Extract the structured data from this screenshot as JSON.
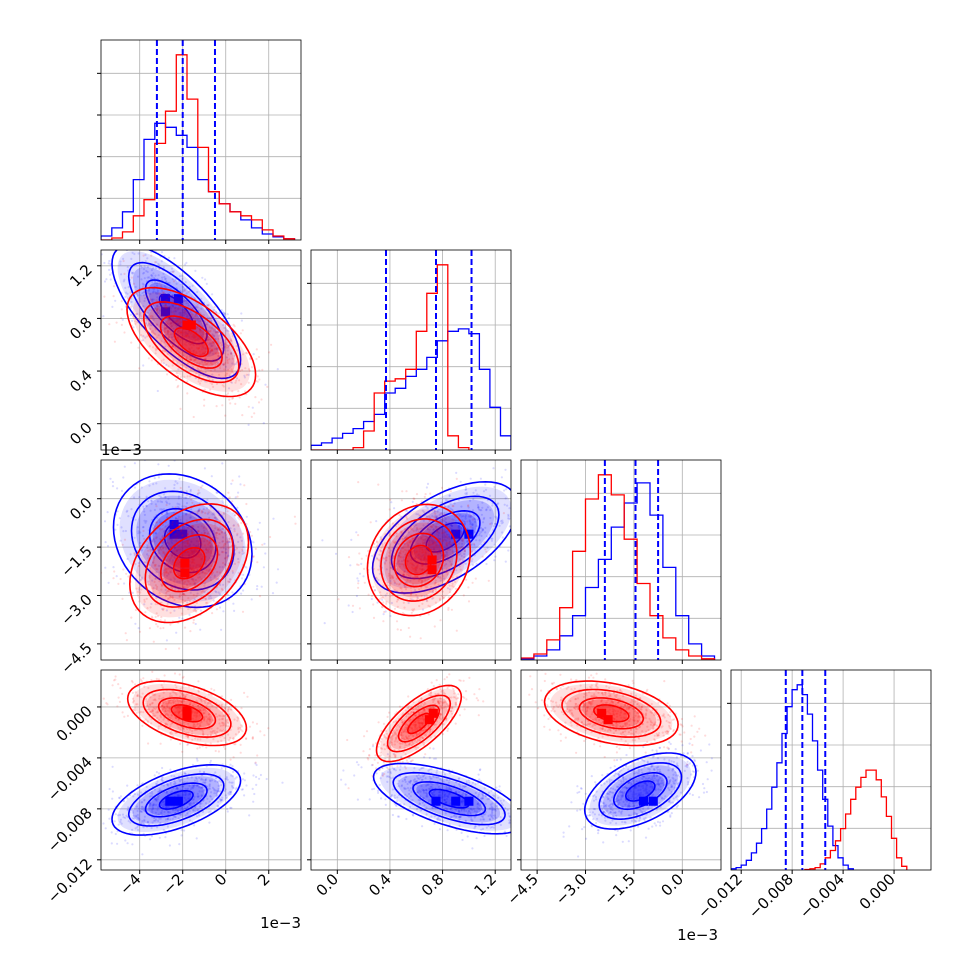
{
  "chart_data": {
    "type": "corner",
    "title": "",
    "grid": true,
    "colors": {
      "blue": "#0000ff",
      "red": "#ff0000",
      "grid": "#b0b0b0"
    },
    "parameters": [
      {
        "offset_label": "1e−3",
        "range": [
          -5.8,
          3.5
        ],
        "ticks": [
          -4,
          -2,
          0,
          2
        ],
        "tick_labels": [
          "−4",
          "−2",
          "0",
          "2"
        ]
      },
      {
        "offset_label": "",
        "range": [
          -0.2,
          1.32
        ],
        "ticks": [
          0.0,
          0.4,
          0.8,
          1.2
        ],
        "tick_labels": [
          "0.0",
          "0.4",
          "0.8",
          "1.2"
        ]
      },
      {
        "offset_label": "1e−3",
        "range": [
          -5.0,
          1.2
        ],
        "ticks": [
          -4.5,
          -3.0,
          -1.5,
          0.0
        ],
        "tick_labels": [
          "−4.5",
          "−3.0",
          "−1.5",
          "0.0"
        ]
      },
      {
        "offset_label": "",
        "range": [
          -0.0128,
          0.0029
        ],
        "ticks": [
          -0.012,
          -0.008,
          -0.004,
          0.0
        ],
        "tick_labels": [
          "−0.012",
          "−0.008",
          "−0.004",
          "0.000"
        ]
      }
    ],
    "quantiles_blue": [
      [
        -3.2,
        -2.0,
        -0.5
      ],
      [
        0.37,
        0.75,
        1.02
      ],
      [
        -2.4,
        -1.45,
        -0.75
      ],
      [
        -0.0085,
        -0.0072,
        -0.0054
      ]
    ],
    "series": [
      {
        "color": "blue",
        "histograms": [
          {
            "bins": [
              -5.8,
              -5.3,
              -4.8,
              -4.3,
              -3.8,
              -3.3,
              -2.8,
              -2.3,
              -1.8,
              -1.3,
              -0.8,
              -0.3,
              0.2,
              0.7,
              1.2,
              1.7,
              2.2,
              2.7,
              3.2
            ],
            "counts": [
              0.1,
              0.3,
              0.7,
              1.5,
              2.5,
              2.9,
              2.8,
              2.6,
              2.3,
              1.5,
              1.2,
              0.9,
              0.7,
              0.5,
              0.3,
              0.15,
              0.08,
              0.03
            ]
          },
          {
            "bins": [
              -0.2,
              -0.12,
              -0.04,
              0.04,
              0.12,
              0.2,
              0.28,
              0.36,
              0.44,
              0.52,
              0.6,
              0.68,
              0.76,
              0.84,
              0.92,
              1.0,
              1.08,
              1.16,
              1.24,
              1.32
            ],
            "counts": [
              0.1,
              0.15,
              0.25,
              0.35,
              0.45,
              0.6,
              0.75,
              1.2,
              1.3,
              1.55,
              1.7,
              1.95,
              2.3,
              2.5,
              2.55,
              2.45,
              1.7,
              0.9,
              0.3
            ]
          },
          {
            "bins": [
              -5.0,
              -4.6,
              -4.2,
              -3.8,
              -3.4,
              -3.0,
              -2.6,
              -2.2,
              -1.8,
              -1.4,
              -1.0,
              -0.6,
              -0.2,
              0.2,
              0.6,
              1.0
            ],
            "counts": [
              0.03,
              0.1,
              0.25,
              0.6,
              1.1,
              1.8,
              2.5,
              3.3,
              3.9,
              4.4,
              3.6,
              2.3,
              1.1,
              0.4,
              0.1
            ]
          },
          {
            "bins": [
              -0.0128,
              -0.0124,
              -0.012,
              -0.0116,
              -0.0112,
              -0.0108,
              -0.0104,
              -0.01,
              -0.0096,
              -0.0092,
              -0.0088,
              -0.0084,
              -0.008,
              -0.0076,
              -0.0072,
              -0.0068,
              -0.0064,
              -0.006,
              -0.0056,
              -0.0052,
              -0.0048,
              -0.0044,
              -0.004,
              -0.0036,
              -0.0032
            ],
            "counts": [
              0.05,
              0.1,
              0.2,
              0.4,
              0.7,
              1.1,
              1.7,
              2.5,
              3.4,
              4.4,
              5.6,
              6.7,
              7.4,
              7.6,
              7.2,
              6.4,
              5.3,
              4.1,
              2.9,
              1.8,
              1.0,
              0.5,
              0.2,
              0.05
            ]
          }
        ],
        "kde2d": [
          {
            "xi": 0,
            "yi": 1,
            "mean": [
              -2.3,
              0.85
            ],
            "sd": [
              1.3,
              0.22
            ],
            "rho": -0.72,
            "bins": [
              [
                -2.8,
                0.95
              ],
              [
                -2.2,
                0.95
              ],
              [
                -2.8,
                0.85
              ]
            ]
          },
          {
            "xi": 0,
            "yi": 2,
            "mean": [
              -2.0,
              -1.3
            ],
            "sd": [
              1.4,
              0.9
            ],
            "rho": -0.2,
            "bins": [
              [
                -2.4,
                -1.1
              ],
              [
                -2.0,
                -1.1
              ],
              [
                -2.4,
                -0.8
              ]
            ]
          },
          {
            "xi": 1,
            "yi": 2,
            "mean": [
              0.82,
              -1.2
            ],
            "sd": [
              0.24,
              0.75
            ],
            "rho": 0.55,
            "bins": [
              [
                0.9,
                -1.1
              ],
              [
                1.0,
                -1.1
              ]
            ]
          },
          {
            "xi": 0,
            "yi": 3,
            "mean": [
              -2.3,
              -0.0073
            ],
            "sd": [
              1.3,
              0.0012
            ],
            "rho": 0.55,
            "bins": [
              [
                -2.6,
                -0.0074
              ],
              [
                -2.2,
                -0.0074
              ]
            ]
          },
          {
            "xi": 1,
            "yi": 3,
            "mean": [
              0.85,
              -0.0072
            ],
            "sd": [
              0.25,
              0.0012
            ],
            "rho": -0.62,
            "bins": [
              [
                0.75,
                -0.0074
              ],
              [
                0.9,
                -0.0074
              ],
              [
                1.0,
                -0.0074
              ]
            ]
          },
          {
            "xi": 2,
            "yi": 3,
            "mean": [
              -1.3,
              -0.0066
            ],
            "sd": [
              0.75,
              0.0013
            ],
            "rho": 0.5,
            "bins": [
              [
                -1.2,
                -0.0074
              ],
              [
                -0.9,
                -0.0074
              ]
            ]
          }
        ]
      },
      {
        "color": "red",
        "histograms": [
          {
            "bins": [
              -5.8,
              -5.3,
              -4.8,
              -4.3,
              -3.8,
              -3.3,
              -2.8,
              -2.3,
              -1.8,
              -1.3,
              -0.8,
              -0.3,
              0.2,
              0.7,
              1.2,
              1.7,
              2.2,
              2.7,
              3.2
            ],
            "counts": [
              0.0,
              0.05,
              0.2,
              0.6,
              1.0,
              2.4,
              3.2,
              4.6,
              3.5,
              2.3,
              1.2,
              0.9,
              0.7,
              0.6,
              0.5,
              0.25,
              0.1,
              0.03
            ]
          },
          {
            "bins": [
              -0.2,
              -0.12,
              -0.04,
              0.04,
              0.12,
              0.2,
              0.28,
              0.36,
              0.44,
              0.52,
              0.6,
              0.68,
              0.76,
              0.84,
              0.92,
              1.0
            ],
            "counts": [
              0.0,
              0.0,
              0.0,
              0.0,
              0.05,
              0.4,
              1.2,
              1.45,
              1.5,
              1.7,
              2.5,
              3.3,
              3.9,
              0.3,
              0.05
            ]
          },
          {
            "bins": [
              -5.0,
              -4.6,
              -4.2,
              -3.8,
              -3.4,
              -3.0,
              -2.6,
              -2.2,
              -1.8,
              -1.4,
              -1.0,
              -0.6,
              -0.2,
              0.2,
              0.6,
              1.0
            ],
            "counts": [
              0.05,
              0.15,
              0.5,
              1.3,
              2.7,
              4.0,
              4.6,
              4.1,
              3.0,
              1.9,
              1.1,
              0.55,
              0.25,
              0.1,
              0.03
            ]
          },
          {
            "bins": [
              -0.007,
              -0.0066,
              -0.0062,
              -0.0058,
              -0.0054,
              -0.005,
              -0.0046,
              -0.0042,
              -0.0038,
              -0.0034,
              -0.003,
              -0.0026,
              -0.0022,
              -0.0018,
              -0.0014,
              -0.001,
              -0.0006,
              -0.0002,
              0.0002,
              0.0006,
              0.001
            ],
            "counts": [
              0.02,
              0.05,
              0.1,
              0.25,
              0.5,
              0.8,
              1.2,
              1.7,
              2.3,
              2.9,
              3.4,
              3.8,
              4.1,
              4.1,
              3.7,
              3.0,
              2.2,
              1.3,
              0.5,
              0.15
            ]
          }
        ],
        "kde2d": [
          {
            "xi": 0,
            "yi": 1,
            "mean": [
              -1.6,
              0.62
            ],
            "sd": [
              1.3,
              0.18
            ],
            "rho": -0.6,
            "bins": [
              [
                -1.8,
                0.75
              ],
              [
                -1.6,
                0.75
              ]
            ]
          },
          {
            "xi": 0,
            "yi": 2,
            "mean": [
              -1.7,
              -2.0
            ],
            "sd": [
              1.2,
              0.8
            ],
            "rho": 0.35,
            "bins": [
              [
                -1.9,
                -2.0
              ],
              [
                -1.9,
                -2.3
              ]
            ]
          },
          {
            "xi": 1,
            "yi": 2,
            "mean": [
              0.62,
              -1.9
            ],
            "sd": [
              0.17,
              0.75
            ],
            "rho": 0.15,
            "bins": [
              [
                0.72,
                -1.9
              ],
              [
                0.72,
                -2.2
              ]
            ]
          },
          {
            "xi": 0,
            "yi": 3,
            "mean": [
              -1.8,
              -0.0005
            ],
            "sd": [
              1.2,
              0.0011
            ],
            "rho": -0.45,
            "bins": [
              [
                -1.8,
                -0.0003
              ],
              [
                -1.8,
                -0.0007
              ]
            ]
          },
          {
            "xi": 1,
            "yi": 3,
            "mean": [
              0.62,
              -0.0013
            ],
            "sd": [
              0.14,
              0.0013
            ],
            "rho": 0.7,
            "bins": [
              [
                0.73,
                -0.0005
              ],
              [
                0.7,
                -0.001
              ]
            ]
          },
          {
            "xi": 2,
            "yi": 3,
            "mean": [
              -2.2,
              -0.0005
            ],
            "sd": [
              0.9,
              0.0011
            ],
            "rho": -0.35,
            "bins": [
              [
                -2.5,
                -0.0005
              ],
              [
                -2.3,
                -0.001
              ]
            ]
          }
        ]
      }
    ]
  }
}
